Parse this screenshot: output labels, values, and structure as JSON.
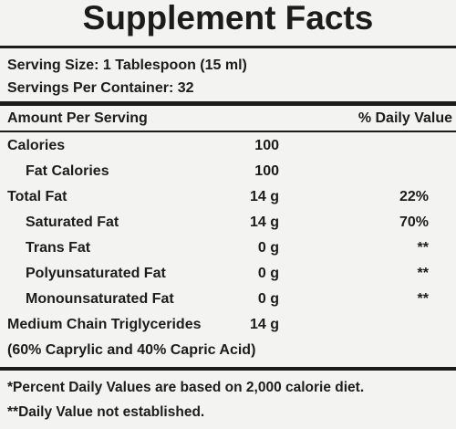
{
  "title": "Supplement Facts",
  "serving_size": "Serving Size: 1 Tablespoon (15 ml)",
  "servings_per_container": "Servings Per Container: 32",
  "header": {
    "amount": "Amount Per Serving",
    "daily_value": "% Daily Value"
  },
  "rows": [
    {
      "name": "Calories",
      "amount": "100"
    },
    {
      "name": "Fat Calories",
      "amount": "100"
    },
    {
      "name": "Total Fat",
      "amount": "14 g",
      "daily_value": "22%"
    },
    {
      "name": "Saturated Fat",
      "amount": "14 g",
      "daily_value": "70%"
    },
    {
      "name": "Trans Fat",
      "amount": "0 g",
      "daily_value": "**"
    },
    {
      "name": "Polyunsaturated Fat",
      "amount": "0 g",
      "daily_value": "**"
    },
    {
      "name": "Monounsaturated Fat",
      "amount": "0 g",
      "daily_value": "**"
    },
    {
      "name": "Medium Chain Triglycerides",
      "amount": "14 g"
    }
  ],
  "note": "(60% Caprylic and 40% Capric Acid)",
  "footnotes": [
    "*Percent Daily Values are based on 2,000 calorie diet.",
    "**Daily Value not established."
  ]
}
